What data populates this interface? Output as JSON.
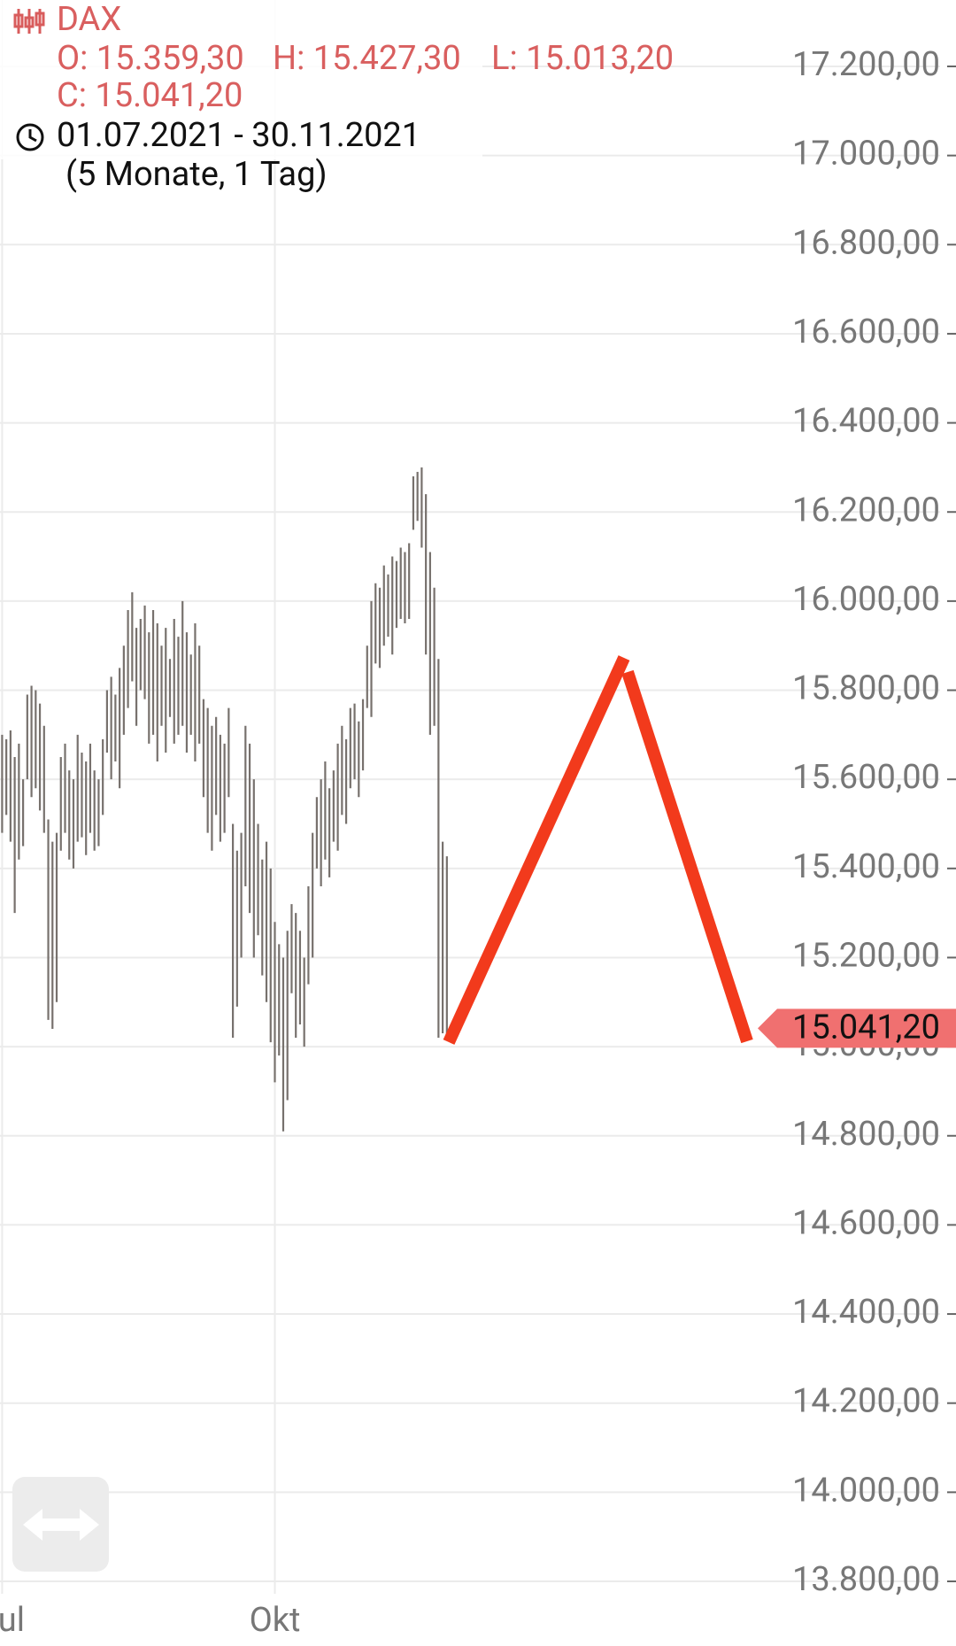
{
  "header": {
    "symbol": "DAX",
    "open": "O: 15.359,30",
    "high": "H: 15.427,30",
    "low": "L: 15.013,20",
    "close": "C: 15.041,20",
    "range": "01.07.2021 - 30.11.2021",
    "period": "(5 Monate, 1 Tag)"
  },
  "chart_data": {
    "type": "ohlc",
    "categories": [
      "Jul",
      null,
      null,
      null,
      null,
      null,
      null,
      null,
      null,
      null,
      null,
      null,
      null,
      null,
      null,
      null,
      null,
      null,
      null,
      null,
      null,
      null,
      null,
      null,
      null,
      null,
      null,
      null,
      null,
      null,
      null,
      null,
      null,
      null,
      null,
      null,
      null,
      null,
      null,
      null,
      null,
      null,
      null,
      null,
      null,
      null,
      null,
      null,
      null,
      null,
      null,
      null,
      null,
      null,
      null,
      null,
      null,
      null,
      null,
      null,
      null,
      null,
      null,
      null,
      null,
      "Okt",
      null,
      null,
      null,
      null,
      null,
      null,
      null,
      null,
      null,
      null,
      null,
      null,
      null,
      null,
      null,
      null,
      null,
      null,
      null,
      null,
      null,
      null,
      null,
      null,
      null,
      null,
      null,
      null,
      null,
      null,
      null,
      null,
      null,
      null,
      null,
      null,
      null,
      null,
      null,
      null,
      null
    ],
    "high": [
      15700,
      15690,
      15710,
      15650,
      15680,
      15600,
      15790,
      15810,
      15800,
      15770,
      15720,
      15510,
      15460,
      15480,
      15650,
      15680,
      15620,
      15600,
      15700,
      15660,
      15640,
      15680,
      15620,
      15600,
      15690,
      15800,
      15830,
      15790,
      15850,
      15900,
      15980,
      16020,
      15940,
      15960,
      15990,
      15930,
      15980,
      15950,
      15900,
      15940,
      15870,
      15960,
      15920,
      16000,
      15930,
      15880,
      15950,
      15900,
      15780,
      15760,
      15720,
      15740,
      15700,
      15680,
      15760,
      15500,
      15440,
      15480,
      15720,
      15680,
      15600,
      15500,
      15420,
      15460,
      15400,
      15280,
      15230,
      15200,
      15260,
      15320,
      15300,
      15260,
      15200,
      15360,
      15480,
      15560,
      15600,
      15640,
      15580,
      15620,
      15680,
      15720,
      15690,
      15760,
      15770,
      15730,
      15780,
      15900,
      16000,
      16040,
      16030,
      16080,
      16060,
      16100,
      16090,
      16120,
      16110,
      16130,
      16280,
      16290,
      16300,
      16240,
      16110,
      16030,
      15870,
      15460,
      15427.3
    ],
    "low": [
      15480,
      15520,
      15460,
      15300,
      15420,
      15450,
      15600,
      15560,
      15580,
      15530,
      15480,
      15060,
      15040,
      15100,
      15440,
      15480,
      15420,
      15400,
      15460,
      15470,
      15430,
      15480,
      15440,
      15450,
      15520,
      15660,
      15600,
      15640,
      15580,
      15700,
      15760,
      15820,
      15720,
      15800,
      15780,
      15680,
      15700,
      15640,
      15720,
      15660,
      15740,
      15680,
      15700,
      15720,
      15660,
      15700,
      15640,
      15680,
      15560,
      15480,
      15440,
      15520,
      15460,
      15480,
      15560,
      15020,
      15090,
      15200,
      15360,
      15300,
      15200,
      15250,
      15160,
      15100,
      15010,
      14920,
      14980,
      14810,
      14880,
      15120,
      15020,
      15050,
      15000,
      15140,
      15200,
      15400,
      15360,
      15420,
      15380,
      15460,
      15440,
      15520,
      15500,
      15580,
      15600,
      15560,
      15620,
      15760,
      15740,
      15860,
      15850,
      15900,
      15920,
      15880,
      15940,
      15960,
      15950,
      15960,
      16160,
      16180,
      16120,
      15880,
      15700,
      15720,
      15020,
      15030,
      15013.2
    ],
    "color": "#77716d",
    "ylim": [
      13800,
      17200
    ],
    "yticks": [
      {
        "value": 17200,
        "label": "17.200,00"
      },
      {
        "value": 17000,
        "label": "17.000,00"
      },
      {
        "value": 16800,
        "label": "16.800,00"
      },
      {
        "value": 16600,
        "label": "16.600,00"
      },
      {
        "value": 16400,
        "label": "16.400,00"
      },
      {
        "value": 16200,
        "label": "16.200,00"
      },
      {
        "value": 16000,
        "label": "16.000,00"
      },
      {
        "value": 15800,
        "label": "15.800,00"
      },
      {
        "value": 15600,
        "label": "15.600,00"
      },
      {
        "value": 15400,
        "label": "15.400,00"
      },
      {
        "value": 15200,
        "label": "15.200,00"
      },
      {
        "value": 15000,
        "label": "15.000,00"
      },
      {
        "value": 14800,
        "label": "14.800,00"
      },
      {
        "value": 14600,
        "label": "14.600,00"
      },
      {
        "value": 14400,
        "label": "14.400,00"
      },
      {
        "value": 14200,
        "label": "14.200,00"
      },
      {
        "value": 14000,
        "label": "14.000,00"
      },
      {
        "value": 13800,
        "label": "13.800,00"
      }
    ],
    "grid": true,
    "last_price": {
      "value": 15041.2,
      "label": "15.041,20"
    },
    "last_price_color": "#f07070"
  }
}
